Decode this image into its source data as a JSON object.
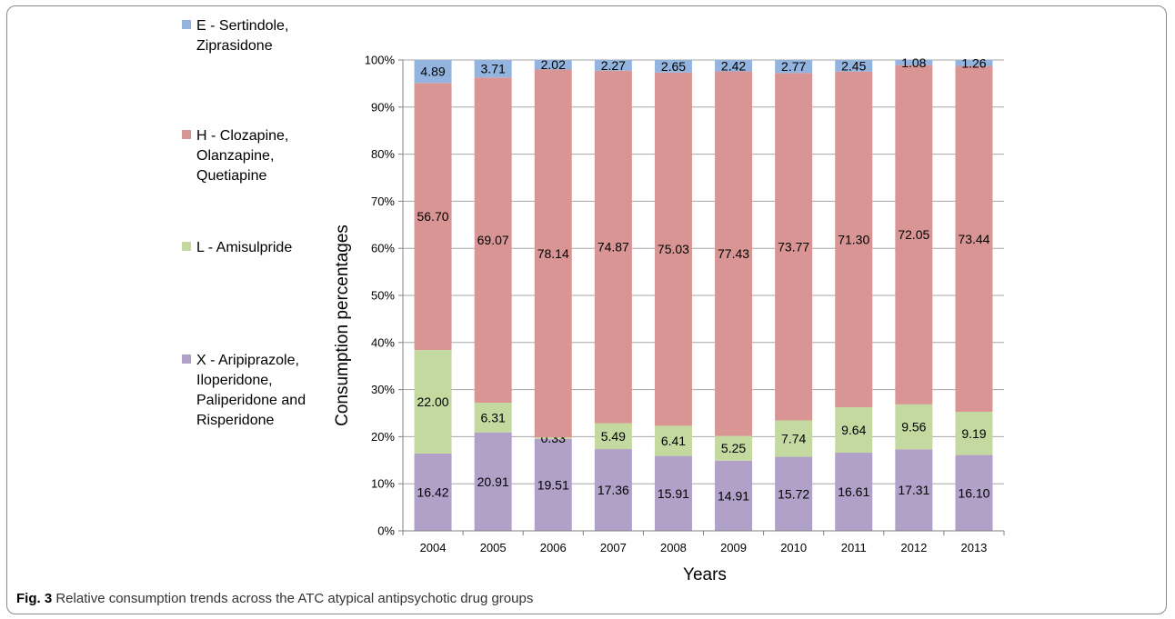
{
  "chart_data": {
    "type": "bar",
    "stacked": true,
    "percent_stacked": true,
    "xlabel": "Years",
    "ylabel": "Consumption percentages",
    "ylim": [
      0,
      100
    ],
    "yticks": [
      "0%",
      "10%",
      "20%",
      "30%",
      "40%",
      "50%",
      "60%",
      "70%",
      "80%",
      "90%",
      "100%"
    ],
    "categories": [
      "2004",
      "2005",
      "2006",
      "2007",
      "2008",
      "2009",
      "2010",
      "2011",
      "2012",
      "2013"
    ],
    "grid": "horizontal",
    "legend_position": "left",
    "series": [
      {
        "name_lines": [
          "X - Aripiprazole,",
          "Iloperidone,",
          "Paliperidone and",
          "Risperidone"
        ],
        "color": "#b1a0c8",
        "values": [
          16.42,
          20.91,
          19.51,
          17.36,
          15.91,
          14.91,
          15.72,
          16.61,
          17.31,
          16.1
        ],
        "labels": [
          "16.42",
          "20.91",
          "19.51",
          "17.36",
          "15.91",
          "14.91",
          "15.72",
          "16.61",
          "17.31",
          "16.10"
        ]
      },
      {
        "name_lines": [
          "L - Amisulpride"
        ],
        "color": "#c4d9a0",
        "values": [
          22.0,
          6.31,
          0.33,
          5.49,
          6.41,
          5.25,
          7.74,
          9.64,
          9.56,
          9.19
        ],
        "labels": [
          "22.00",
          "6.31",
          "0.33",
          "5.49",
          "6.41",
          "5.25",
          "7.74",
          "9.64",
          "9.56",
          "9.19"
        ]
      },
      {
        "name_lines": [
          "H - Clozapine,",
          "Olanzapine,",
          "Quetiapine"
        ],
        "color": "#d99594",
        "values": [
          56.7,
          69.07,
          78.14,
          74.87,
          75.03,
          77.43,
          73.77,
          71.3,
          72.05,
          73.44
        ],
        "labels": [
          "56.70",
          "69.07",
          "78.14",
          "74.87",
          "75.03",
          "77.43",
          "73.77",
          "71.30",
          "72.05",
          "73.44"
        ]
      },
      {
        "name_lines": [
          "E - Sertindole,",
          "Ziprasidone"
        ],
        "color": "#93b4df",
        "values": [
          4.89,
          3.71,
          2.02,
          2.27,
          2.65,
          2.42,
          2.77,
          2.45,
          1.08,
          1.26
        ],
        "labels": [
          "4.89",
          "3.71",
          "2.02",
          "2.27",
          "2.65",
          "2.42",
          "2.77",
          "2.45",
          "1.08",
          "1.26"
        ]
      }
    ]
  },
  "caption": {
    "label": "Fig. 3",
    "text": "Relative consumption trends across the ATC atypical antipsychotic drug groups"
  }
}
